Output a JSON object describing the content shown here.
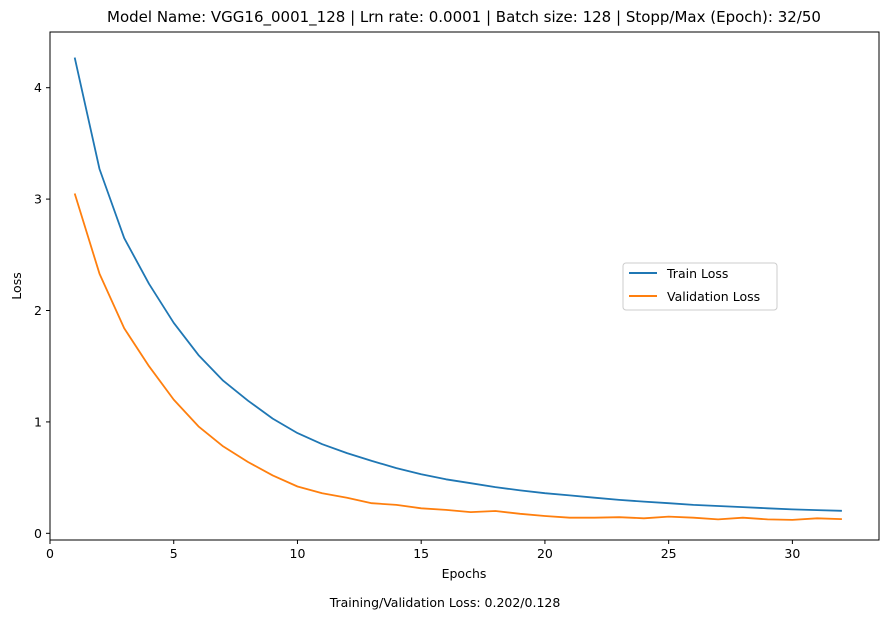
{
  "chart_data": {
    "type": "line",
    "title": "Model Name: VGG16_0001_128 | Lrn rate: 0.0001 | Batch size: 128 | Stopp/Max (Epoch): 32/50",
    "xlabel": "Epochs",
    "ylabel": "Loss",
    "caption": "Training/Validation Loss: 0.202/0.128",
    "xlim": [
      0,
      33.5
    ],
    "ylim": [
      -0.06,
      4.5
    ],
    "xticks": [
      0,
      5,
      10,
      15,
      20,
      25,
      30
    ],
    "yticks": [
      0,
      1,
      2,
      3,
      4
    ],
    "grid": false,
    "legend_position": "center-right",
    "x": [
      1,
      2,
      3,
      4,
      5,
      6,
      7,
      8,
      9,
      10,
      11,
      12,
      13,
      14,
      15,
      16,
      17,
      18,
      19,
      20,
      21,
      22,
      23,
      24,
      25,
      26,
      27,
      28,
      29,
      30,
      31,
      32
    ],
    "series": [
      {
        "name": "Train Loss",
        "color": "#1f77b4",
        "values": [
          4.27,
          3.27,
          2.65,
          2.24,
          1.89,
          1.6,
          1.37,
          1.19,
          1.03,
          0.9,
          0.8,
          0.72,
          0.65,
          0.585,
          0.53,
          0.485,
          0.45,
          0.415,
          0.385,
          0.36,
          0.34,
          0.32,
          0.3,
          0.285,
          0.27,
          0.255,
          0.245,
          0.235,
          0.225,
          0.215,
          0.208,
          0.202
        ]
      },
      {
        "name": "Validation Loss",
        "color": "#ff7f0e",
        "values": [
          3.05,
          2.33,
          1.84,
          1.5,
          1.2,
          0.96,
          0.78,
          0.64,
          0.52,
          0.42,
          0.36,
          0.32,
          0.27,
          0.255,
          0.225,
          0.21,
          0.19,
          0.2,
          0.175,
          0.155,
          0.14,
          0.14,
          0.145,
          0.135,
          0.15,
          0.14,
          0.125,
          0.14,
          0.125,
          0.12,
          0.135,
          0.128
        ]
      }
    ]
  }
}
